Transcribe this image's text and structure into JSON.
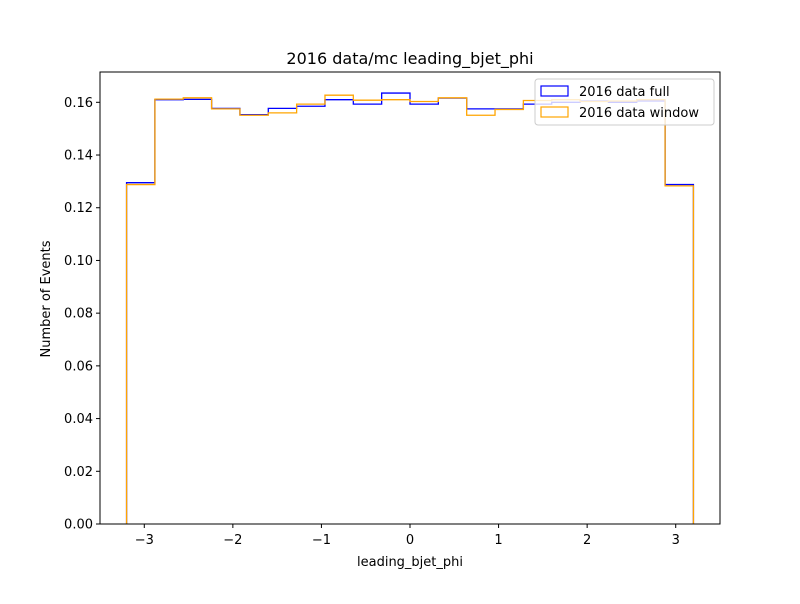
{
  "chart_data": {
    "type": "histogram-step",
    "title": "2016 data/mc leading_bjet_phi",
    "xlabel": "leading_bjet_phi",
    "ylabel": "Number of Events",
    "xlim": [
      -3.5,
      3.5
    ],
    "ylim": [
      0,
      0.1715
    ],
    "x_ticks": [
      -3,
      -2,
      -1,
      0,
      1,
      2,
      3
    ],
    "x_tick_labels": [
      "−3",
      "−2",
      "−1",
      "0",
      "1",
      "2",
      "3"
    ],
    "y_ticks": [
      0.0,
      0.02,
      0.04,
      0.06,
      0.08,
      0.1,
      0.12,
      0.14,
      0.16
    ],
    "y_tick_labels": [
      "0.00",
      "0.02",
      "0.04",
      "0.06",
      "0.08",
      "0.10",
      "0.12",
      "0.14",
      "0.16"
    ],
    "bin_edges": [
      -3.2,
      -2.88,
      -2.56,
      -2.24,
      -1.92,
      -1.6,
      -1.28,
      -0.96,
      -0.64,
      -0.32,
      0.0,
      0.32,
      0.64,
      0.96,
      1.28,
      1.6,
      1.92,
      2.24,
      2.56,
      2.88,
      3.2
    ],
    "legend_position": "top-right",
    "series": [
      {
        "name": "2016 data full",
        "color": "#0000ff",
        "values": [
          0.1295,
          0.161,
          0.1611,
          0.1577,
          0.1553,
          0.1577,
          0.1585,
          0.161,
          0.1593,
          0.1635,
          0.1593,
          0.1616,
          0.1575,
          0.1575,
          0.1593,
          0.16,
          0.1605,
          0.16,
          0.1605,
          0.1288
        ]
      },
      {
        "name": "2016 data window",
        "color": "#ffa500",
        "values": [
          0.1288,
          0.1612,
          0.1617,
          0.1575,
          0.1551,
          0.156,
          0.1593,
          0.1627,
          0.1608,
          0.161,
          0.1603,
          0.1617,
          0.1551,
          0.1573,
          0.1607,
          0.161,
          0.1603,
          0.1605,
          0.161,
          0.1283
        ]
      }
    ]
  }
}
